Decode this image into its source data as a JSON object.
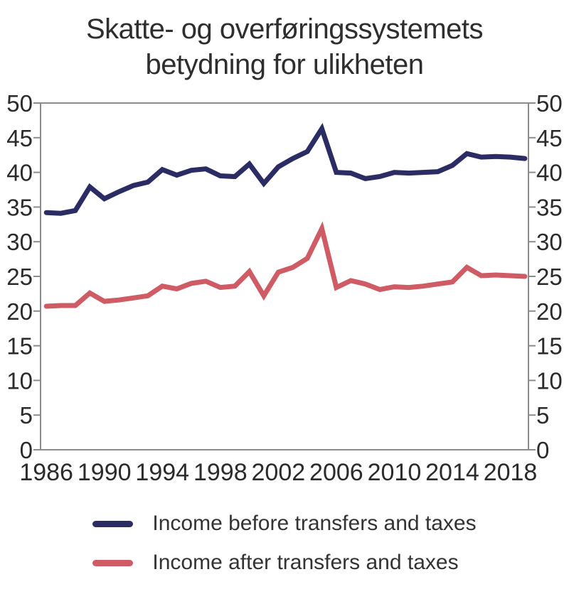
{
  "title": {
    "line1": "Skatte- og overføringssystemets",
    "line2": "betydning for ulikheten"
  },
  "legend": {
    "items": [
      {
        "label": "Income before transfers and taxes",
        "color": "#2a2c63"
      },
      {
        "label": "Income after transfers and taxes",
        "color": "#cf5c64"
      }
    ]
  },
  "chart_data": {
    "type": "line",
    "title": "Skatte- og overføringssystemets betydning for ulikheten",
    "x": [
      1986,
      1987,
      1988,
      1989,
      1990,
      1991,
      1992,
      1993,
      1994,
      1995,
      1996,
      1997,
      1998,
      1999,
      2000,
      2001,
      2002,
      2003,
      2004,
      2005,
      2006,
      2007,
      2008,
      2009,
      2010,
      2011,
      2012,
      2013,
      2014,
      2015,
      2016,
      2017,
      2018,
      2019
    ],
    "series": [
      {
        "name": "Income before transfers and taxes",
        "color": "#2a2c63",
        "values": [
          34.2,
          34.1,
          34.5,
          37.9,
          36.2,
          37.2,
          38.1,
          38.6,
          40.4,
          39.6,
          40.3,
          40.5,
          39.5,
          39.4,
          41.2,
          38.4,
          40.8,
          42.0,
          43.0,
          46.3,
          40.0,
          39.9,
          39.1,
          39.4,
          40.0,
          39.9,
          40.0,
          40.1,
          41.0,
          42.7,
          42.2,
          42.3,
          42.2,
          42.0
        ]
      },
      {
        "name": "Income after transfers and taxes",
        "color": "#cf5c64",
        "values": [
          20.7,
          20.8,
          20.8,
          22.6,
          21.4,
          21.6,
          21.9,
          22.2,
          23.6,
          23.2,
          24.0,
          24.3,
          23.4,
          23.6,
          25.7,
          22.2,
          25.6,
          26.3,
          27.6,
          31.9,
          23.4,
          24.4,
          23.9,
          23.1,
          23.5,
          23.4,
          23.6,
          23.9,
          24.2,
          26.3,
          25.1,
          25.2,
          25.1,
          25.0
        ]
      }
    ],
    "xlabel": "",
    "ylabel": "",
    "x_tick_labels": [
      "1986",
      "1990",
      "1994",
      "1998",
      "2002",
      "2006",
      "2010",
      "2014",
      "2018"
    ],
    "x_tick_values": [
      1986,
      1990,
      1994,
      1998,
      2002,
      2006,
      2010,
      2014,
      2018
    ],
    "y_ticks": [
      0,
      5,
      10,
      15,
      20,
      25,
      30,
      35,
      40,
      45,
      50
    ],
    "ylim": [
      0,
      50
    ],
    "xlim": [
      1985.6,
      2019.25
    ],
    "grid": false,
    "y_axis_sides": [
      "left",
      "right"
    ],
    "legend_position": "bottom",
    "axis_color": "#8c8c8c",
    "text_color": "#2b2b2b"
  }
}
